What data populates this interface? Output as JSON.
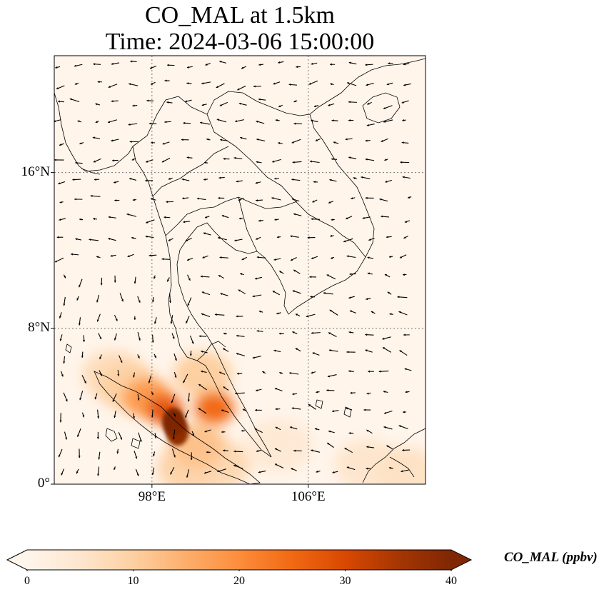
{
  "title_line1": "CO_MAL at 1.5km",
  "title_line2": "Time: 2024-03-06 15:00:00",
  "lon_ticks": [
    {
      "value": 98,
      "label": "98°E"
    },
    {
      "value": 106,
      "label": "106°E"
    }
  ],
  "lat_ticks": [
    {
      "value": 16,
      "label": "16°N"
    },
    {
      "value": 8,
      "label": "8°N"
    },
    {
      "value": 0,
      "label": "0°"
    }
  ],
  "colorbar": {
    "label": "CO_MAL (ppbv)",
    "min": 0,
    "max": 40,
    "extend": "both",
    "ticks": [
      {
        "value": 0,
        "label": "0"
      },
      {
        "value": 10,
        "label": "10"
      },
      {
        "value": 20,
        "label": "20"
      },
      {
        "value": 30,
        "label": "30"
      },
      {
        "value": 40,
        "label": "40"
      }
    ],
    "colormap": [
      "#fff5eb",
      "#fee6ce",
      "#fdd0a2",
      "#fdae6b",
      "#fd8d3c",
      "#f16913",
      "#d94801",
      "#a63603",
      "#7f2704"
    ]
  },
  "map": {
    "extent": {
      "lon_min": 93,
      "lon_max": 112,
      "lat_min": 0,
      "lat_max": 22
    },
    "gridlines": "dotted",
    "wind_vectors": true
  },
  "chart_data": {
    "type": "heatmap",
    "title": "CO_MAL at 1.5km\nTime: 2024-03-06 15:00:00",
    "variable": "CO_MAL",
    "units": "ppbv",
    "value_range": [
      0,
      40
    ],
    "hotspots": [
      {
        "lon": 99.1,
        "lat": 3.2,
        "value": 40
      },
      {
        "lon": 99.3,
        "lat": 2.7,
        "value": 38
      },
      {
        "lon": 98.7,
        "lat": 3.8,
        "value": 28
      },
      {
        "lon": 97.8,
        "lat": 4.4,
        "value": 18
      },
      {
        "lon": 96.8,
        "lat": 5.0,
        "value": 10
      },
      {
        "lon": 96.0,
        "lat": 5.6,
        "value": 7
      },
      {
        "lon": 101.2,
        "lat": 3.9,
        "value": 25
      },
      {
        "lon": 100.6,
        "lat": 5.6,
        "value": 10
      },
      {
        "lon": 100.3,
        "lat": 2.0,
        "value": 12
      },
      {
        "lon": 101.5,
        "lat": 1.0,
        "value": 8
      },
      {
        "lon": 99.8,
        "lat": 0.8,
        "value": 9
      },
      {
        "lon": 104.5,
        "lat": 2.0,
        "value": 4
      },
      {
        "lon": 109.0,
        "lat": 1.0,
        "value": 5
      },
      {
        "lon": 111.0,
        "lat": 0.6,
        "value": 6
      }
    ]
  }
}
